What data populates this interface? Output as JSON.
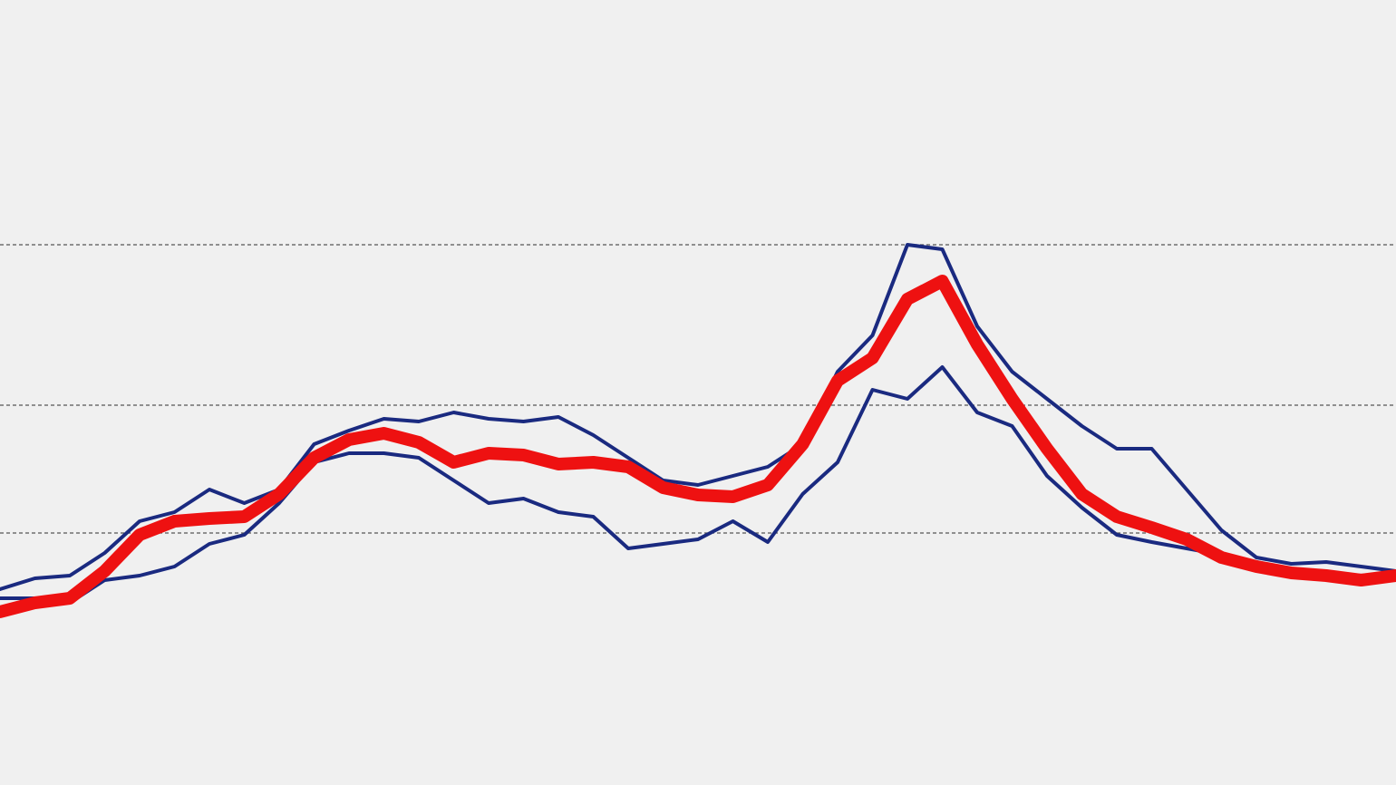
{
  "chart_data": {
    "type": "line",
    "ylim": [
      0,
      86.6
    ],
    "yticks": [
      27.8,
      41.9,
      59.6
    ],
    "grid": true,
    "series": [
      {
        "color": "#1a2a80",
        "width": 4,
        "values": [
          21.6,
          22.8,
          23.1,
          25.6,
          29.1,
          30.1,
          32.6,
          31.1,
          32.6,
          37.6,
          39.1,
          40.4,
          40.1,
          41.1,
          40.4,
          40.1,
          40.6,
          38.6,
          36.1,
          33.6,
          33.1,
          34.1,
          35.1,
          37.6,
          45.6,
          49.6,
          59.6,
          59.1,
          50.6,
          45.6,
          42.6,
          39.6,
          37.1,
          37.1,
          32.6,
          28.1,
          25.1,
          24.4,
          24.6,
          24.1,
          23.6
        ]
      },
      {
        "color": "#1a2a80",
        "width": 4,
        "values": [
          20.6,
          20.6,
          20.1,
          22.6,
          23.1,
          24.1,
          26.6,
          27.6,
          31.1,
          35.6,
          36.6,
          36.6,
          36.1,
          33.6,
          31.1,
          31.6,
          30.1,
          29.6,
          26.1,
          26.6,
          27.1,
          29.1,
          26.8,
          32.1,
          35.6,
          43.6,
          42.6,
          46.1,
          41.1,
          39.6,
          34.1,
          30.6,
          27.6,
          26.8,
          26.1,
          25.4,
          24.6,
          23.8,
          23.4,
          23.1,
          23.4
        ]
      },
      {
        "color": "#ee1111",
        "width": 14,
        "values": [
          19.1,
          20.1,
          20.6,
          23.6,
          27.6,
          29.1,
          29.4,
          29.6,
          32.1,
          36.1,
          38.1,
          38.8,
          37.8,
          35.6,
          36.6,
          36.4,
          35.4,
          35.6,
          35.1,
          32.8,
          32.0,
          31.8,
          33.1,
          37.6,
          44.6,
          47.1,
          53.6,
          55.6,
          48.6,
          42.6,
          37.1,
          32.1,
          29.6,
          28.4,
          27.1,
          25.1,
          24.1,
          23.4,
          23.1,
          22.6,
          23.1
        ]
      }
    ]
  }
}
